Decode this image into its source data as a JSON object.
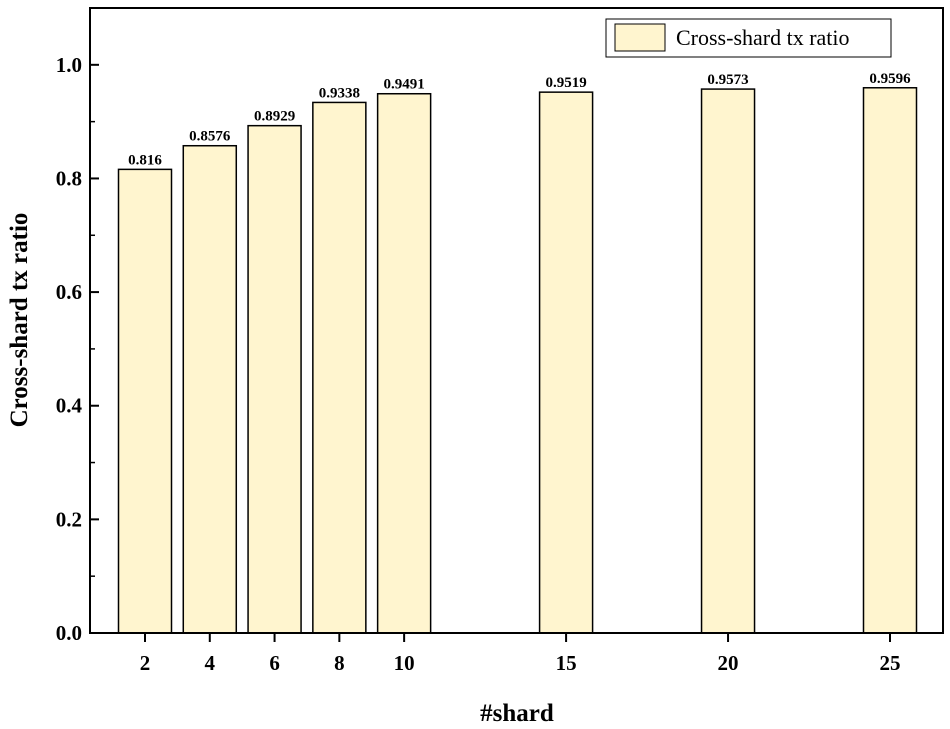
{
  "chart_data": {
    "type": "bar",
    "x": [
      2,
      4,
      6,
      8,
      10,
      15,
      20,
      25
    ],
    "values": [
      0.816,
      0.8576,
      0.8929,
      0.9338,
      0.9491,
      0.9519,
      0.9573,
      0.9596
    ],
    "value_labels": [
      "0.816",
      "0.8576",
      "0.8929",
      "0.9338",
      "0.9491",
      "0.9519",
      "0.9573",
      "0.9596"
    ],
    "x_ticks": [
      "2",
      "4",
      "6",
      "8",
      "10",
      "15",
      "20",
      "25"
    ],
    "y_ticks": [
      "0.0",
      "0.2",
      "0.4",
      "0.6",
      "0.8",
      "1.0"
    ],
    "y_tick_values": [
      0,
      0.2,
      0.4,
      0.6,
      0.8,
      1.0
    ],
    "xlabel": "#shard",
    "ylabel": "Cross-shard tx ratio",
    "ylim": [
      0,
      1.1
    ],
    "legend": {
      "entries": [
        "Cross-shard tx ratio"
      ],
      "position": "top-right"
    },
    "grid": false,
    "colors": {
      "bar_fill": "#fff5cf",
      "bar_stroke": "#000000"
    }
  }
}
